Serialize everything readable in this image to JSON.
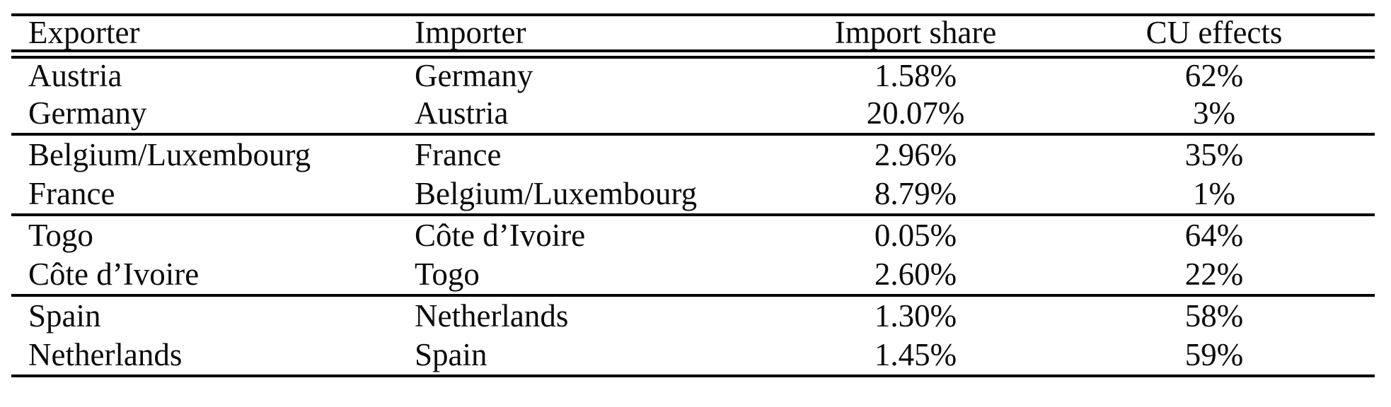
{
  "colors": {
    "background": "#ffffff",
    "text": "#0b0b0c",
    "rule": "#000000"
  },
  "table": {
    "columns": [
      "Exporter",
      "Importer",
      "Import share",
      "CU effects"
    ],
    "groups": [
      {
        "rows": [
          {
            "exporter": "Austria",
            "importer": "Germany",
            "import_share": "1.58%",
            "cu_effects": "62%"
          },
          {
            "exporter": "Germany",
            "importer": "Austria",
            "import_share": "20.07%",
            "cu_effects": "3%"
          }
        ]
      },
      {
        "rows": [
          {
            "exporter": "Belgium/Luxembourg",
            "importer": "France",
            "import_share": "2.96%",
            "cu_effects": "35%"
          },
          {
            "exporter": "France",
            "importer": "Belgium/Luxembourg",
            "import_share": "8.79%",
            "cu_effects": "1%"
          }
        ]
      },
      {
        "rows": [
          {
            "exporter": "Togo",
            "importer": "Côte d’Ivoire",
            "import_share": "0.05%",
            "cu_effects": "64%"
          },
          {
            "exporter": "Côte d’Ivoire",
            "importer": "Togo",
            "import_share": "2.60%",
            "cu_effects": "22%"
          }
        ]
      },
      {
        "rows": [
          {
            "exporter": "Spain",
            "importer": "Netherlands",
            "import_share": "1.30%",
            "cu_effects": "58%"
          },
          {
            "exporter": "Netherlands",
            "importer": "Spain",
            "import_share": "1.45%",
            "cu_effects": "59%"
          }
        ]
      }
    ]
  }
}
